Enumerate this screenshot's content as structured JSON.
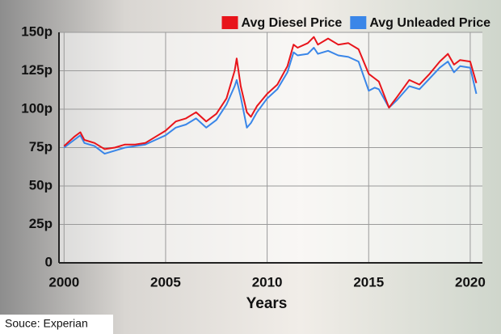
{
  "chart_data": {
    "type": "line",
    "xlabel": "Years",
    "source": "Souce: Experian",
    "xlim": [
      1999.75,
      2020.6
    ],
    "xticks": [
      2000,
      2005,
      2010,
      2015,
      2020
    ],
    "ylim": [
      0,
      150
    ],
    "yticks": [
      {
        "value": 0,
        "label": "0"
      },
      {
        "value": 25,
        "label": "25p"
      },
      {
        "value": 50,
        "label": "50p"
      },
      {
        "value": 75,
        "label": "75p"
      },
      {
        "value": 100,
        "label": "100p"
      },
      {
        "value": 125,
        "label": "125p"
      },
      {
        "value": 150,
        "label": "150p"
      }
    ],
    "grid": true,
    "legend": "top-right",
    "x": [
      2000,
      2000.5,
      2000.8,
      2001,
      2001.5,
      2002,
      2002.5,
      2003,
      2003.5,
      2004,
      2004.5,
      2005,
      2005.5,
      2006,
      2006.5,
      2007,
      2007.5,
      2008,
      2008.4,
      2008.5,
      2008.7,
      2009,
      2009.2,
      2009.5,
      2010,
      2010.5,
      2011,
      2011.3,
      2011.5,
      2012,
      2012.3,
      2012.5,
      2013,
      2013.5,
      2014,
      2014.5,
      2015,
      2015.3,
      2015.5,
      2016,
      2016.4,
      2017,
      2017.5,
      2018,
      2018.5,
      2018.9,
      2019.2,
      2019.5,
      2020,
      2020.3
    ],
    "series": [
      {
        "name": "Avg Diesel Price",
        "color": "#e8141b",
        "values": [
          76,
          82,
          85,
          80,
          78,
          74,
          75,
          77,
          77,
          78,
          82,
          86,
          92,
          94,
          98,
          92,
          97,
          107,
          125,
          133,
          115,
          98,
          95,
          102,
          110,
          116,
          128,
          142,
          140,
          143,
          147,
          142,
          146,
          142,
          143,
          139,
          123,
          120,
          118,
          101,
          108,
          119,
          116,
          123,
          131,
          136,
          129,
          132,
          131,
          117
        ]
      },
      {
        "name": "Avg Unleaded Price",
        "color": "#3a86e8",
        "values": [
          75,
          80,
          83,
          78,
          76,
          71,
          73,
          75,
          76,
          77,
          80,
          83,
          88,
          90,
          94,
          88,
          93,
          103,
          115,
          119,
          108,
          88,
          91,
          98,
          107,
          113,
          124,
          137,
          135,
          136,
          140,
          136,
          138,
          135,
          134,
          131,
          112,
          114,
          113,
          101,
          106,
          115,
          113,
          120,
          127,
          131,
          124,
          128,
          127,
          110
        ]
      }
    ]
  }
}
